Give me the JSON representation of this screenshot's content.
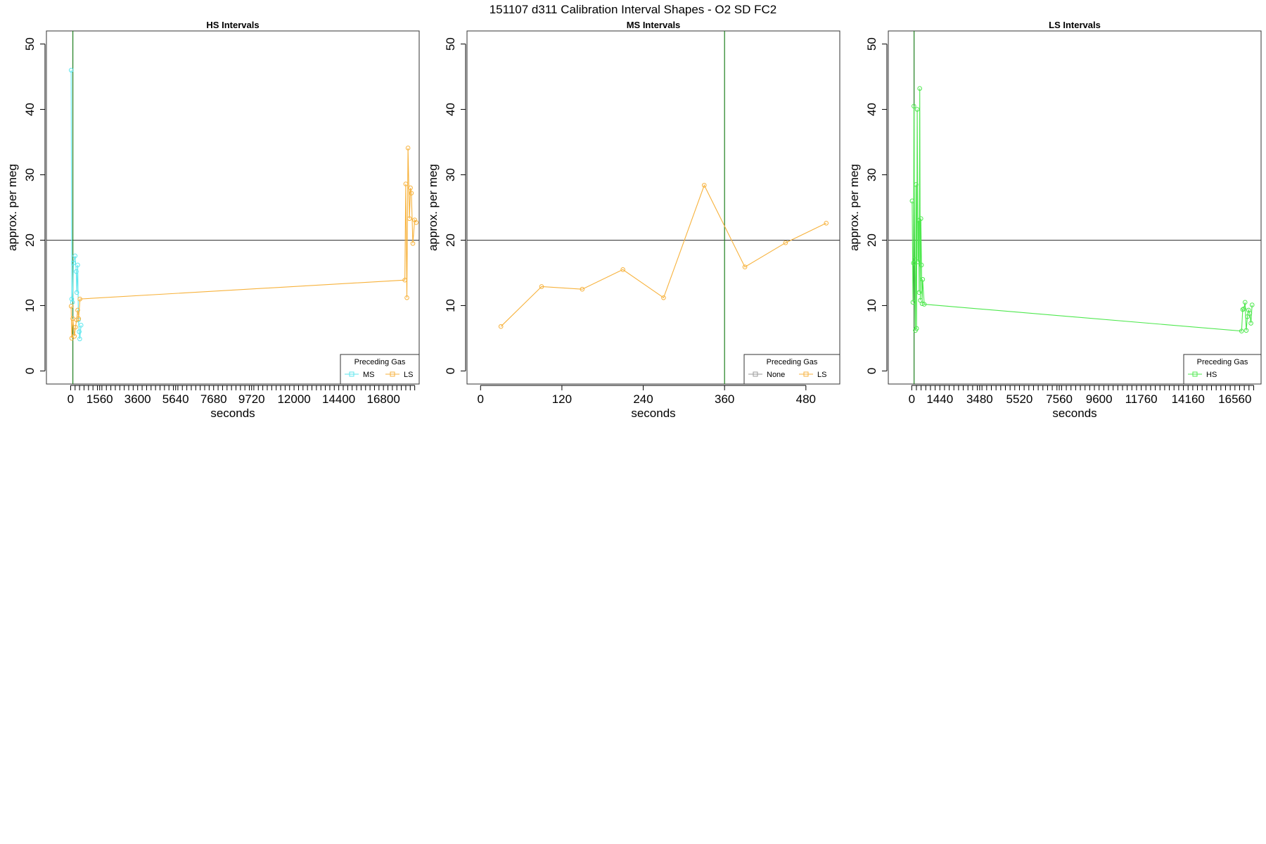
{
  "figure": {
    "title": "151107   d311   Calibration Interval Shapes - O2 SD FC2"
  },
  "colors": {
    "MS": "#5ce6ee",
    "LS": "#f7b23c",
    "HS": "#4ee84e",
    "None": "#9a9a9a",
    "vline": "#1e7f1e",
    "hline": "#333333",
    "frame": "#333333"
  },
  "chart_data": [
    {
      "type": "line",
      "title": "HS Intervals",
      "xlabel": "seconds",
      "ylabel": "approx. per meg",
      "xlim": [
        -1300,
        18720
      ],
      "ylim": [
        -2,
        52
      ],
      "xticks_major": [
        0,
        1560,
        3600,
        5640,
        7680,
        9720,
        12000,
        14400,
        16800
      ],
      "xticks_minor_step": 240,
      "xticks_minor_range": [
        240,
        18480
      ],
      "yticks": [
        0,
        10,
        20,
        30,
        40,
        50
      ],
      "hline": 20,
      "vline": 120,
      "legend": {
        "title": "Preceding Gas",
        "position": "bottom-right",
        "entries": [
          "MS",
          "LS"
        ]
      },
      "series": [
        {
          "name": "MS",
          "color_key": "MS",
          "points": [
            [
              30,
              46
            ],
            [
              60,
              11
            ],
            [
              100,
              10.5
            ],
            [
              150,
              16.5
            ],
            [
              240,
              17.6
            ],
            [
              300,
              15.2
            ],
            [
              330,
              12
            ],
            [
              380,
              16.2
            ],
            [
              420,
              7.8
            ],
            [
              460,
              6
            ],
            [
              490,
              4.9
            ],
            [
              560,
              7
            ]
          ]
        },
        {
          "name": "LS",
          "color_key": "LS",
          "points": [
            [
              30,
              9.9
            ],
            [
              60,
              5
            ],
            [
              120,
              8
            ],
            [
              200,
              5.3
            ],
            [
              260,
              6.7
            ],
            [
              320,
              7.8
            ],
            [
              380,
              9.3
            ],
            [
              430,
              8
            ],
            [
              500,
              11
            ],
            [
              17950,
              13.9
            ],
            [
              18000,
              28.6
            ],
            [
              18060,
              11.2
            ],
            [
              18120,
              34.1
            ],
            [
              18200,
              23.3
            ],
            [
              18250,
              28
            ],
            [
              18300,
              27.2
            ],
            [
              18380,
              19.5
            ],
            [
              18480,
              23.1
            ],
            [
              18560,
              22.7
            ]
          ]
        }
      ]
    },
    {
      "type": "line",
      "title": "MS Intervals",
      "xlabel": "seconds",
      "ylabel": "approx. per meg",
      "xlim": [
        -20,
        530
      ],
      "ylim": [
        -2,
        52
      ],
      "xticks_major": [
        0,
        120,
        240,
        360,
        480
      ],
      "xticks_minor_step": 0,
      "xticks_minor_range": [
        0,
        0
      ],
      "yticks": [
        0,
        10,
        20,
        30,
        40,
        50
      ],
      "hline": 20,
      "vline": 360,
      "legend": {
        "title": "Preceding Gas",
        "position": "bottom-right",
        "entries": [
          "None",
          "LS"
        ]
      },
      "series": [
        {
          "name": "None",
          "color_key": "None",
          "points": []
        },
        {
          "name": "LS",
          "color_key": "LS",
          "points": [
            [
              30,
              6.8
            ],
            [
              90,
              12.9
            ],
            [
              150,
              12.5
            ],
            [
              210,
              15.5
            ],
            [
              270,
              11.2
            ],
            [
              330,
              28.4
            ],
            [
              390,
              15.9
            ],
            [
              450,
              19.6
            ],
            [
              510,
              22.6
            ]
          ]
        }
      ]
    },
    {
      "type": "line",
      "title": "LS Intervals",
      "xlabel": "seconds",
      "ylabel": "approx. per meg",
      "xlim": [
        -1200,
        17900
      ],
      "ylim": [
        -2,
        52
      ],
      "xticks_major": [
        0,
        1440,
        3480,
        5520,
        7560,
        9600,
        11760,
        14160,
        16560
      ],
      "xticks_minor_step": 240,
      "xticks_minor_range": [
        240,
        17520
      ],
      "yticks": [
        0,
        10,
        20,
        30,
        40,
        50
      ],
      "hline": 20,
      "vline": 120,
      "legend": {
        "title": "Preceding Gas",
        "position": "bottom-right",
        "entries": [
          "HS"
        ]
      },
      "series": [
        {
          "name": "HS",
          "color_key": "HS",
          "points": [
            [
              20,
              26
            ],
            [
              60,
              10.5
            ],
            [
              90,
              16.5
            ],
            [
              110,
              40.5
            ],
            [
              150,
              17
            ],
            [
              190,
              6.2
            ],
            [
              220,
              28.5
            ],
            [
              250,
              6.5
            ],
            [
              280,
              40
            ],
            [
              320,
              16.7
            ],
            [
              350,
              23
            ],
            [
              380,
              12
            ],
            [
              410,
              43.2
            ],
            [
              440,
              10.8
            ],
            [
              470,
              23.3
            ],
            [
              500,
              16.2
            ],
            [
              530,
              10.3
            ],
            [
              560,
              14
            ],
            [
              640,
              10.2
            ],
            [
              16900,
              6.1
            ],
            [
              16960,
              9.4
            ],
            [
              17020,
              9.5
            ],
            [
              17080,
              10.5
            ],
            [
              17140,
              6.2
            ],
            [
              17200,
              8.3
            ],
            [
              17260,
              9.3
            ],
            [
              17320,
              8.8
            ],
            [
              17380,
              7.3
            ],
            [
              17440,
              10.1
            ]
          ]
        }
      ]
    }
  ]
}
